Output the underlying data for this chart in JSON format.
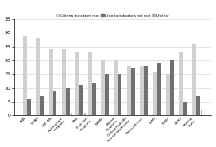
{
  "categories": [
    "ANM",
    "NMAR",
    "NATVNS",
    "Nottingham\nHospitals",
    "TIME",
    "East Kent\nHospitals",
    "WAMS",
    "Bolton\nHospitals",
    "Oxford Radcliffe\nPrivate Healthcare",
    "Bates-Johnson",
    "LUMT",
    "PUSH",
    "SWAT",
    "Seating\nScale"
  ],
  "met": [
    29,
    28,
    24,
    24,
    23,
    23,
    20,
    20,
    18,
    18,
    16,
    15,
    23,
    26
  ],
  "not_met": [
    6,
    7,
    9,
    10,
    11,
    12,
    15,
    15,
    17,
    18,
    19,
    20,
    5,
    7
  ],
  "unclear": [
    0,
    0,
    0,
    1,
    1,
    0,
    0,
    0,
    0,
    0,
    0,
    0,
    0,
    2
  ],
  "color_met": "#d0d0d0",
  "color_not_met": "#707070",
  "color_unclear": "#b0b0b0",
  "ylim": [
    0,
    35
  ],
  "yticks": [
    0,
    5,
    10,
    15,
    20,
    25,
    30,
    35
  ],
  "legend_met": "Criteria indicators met",
  "legend_not_met": "Criteria indicators not met",
  "legend_unclear": "Unclear"
}
